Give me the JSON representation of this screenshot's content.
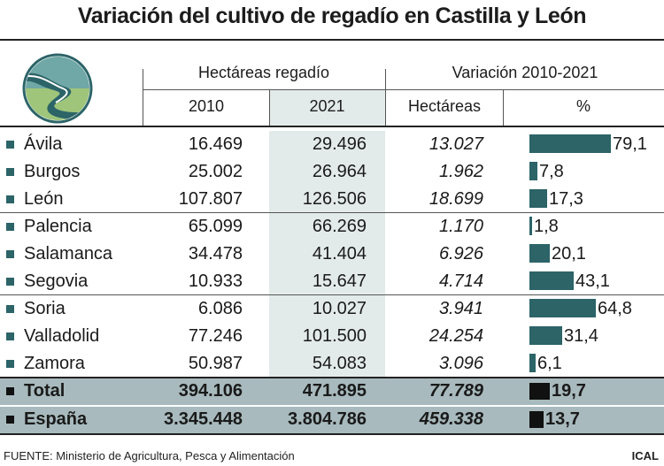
{
  "title": "Variación del cultivo de regadío en Castilla y León",
  "headers": {
    "group1": "Hectáreas regadío",
    "group2": "Variación 2010-2021",
    "col2010": "2010",
    "col2021": "2021",
    "colHa": "Hectáreas",
    "colPct": "%"
  },
  "chart_data": {
    "type": "table",
    "title": "Variación del cultivo de regadío en Castilla y León",
    "columns": [
      "2010",
      "2021",
      "Hectáreas",
      "%"
    ],
    "rows": [
      {
        "name": "Ávila",
        "y2010": "16.469",
        "y2021": "29.496",
        "ha": "13.027",
        "pct": "79,1",
        "pct_value": 79.1
      },
      {
        "name": "Burgos",
        "y2010": "25.002",
        "y2021": "26.964",
        "ha": "1.962",
        "pct": "7,8",
        "pct_value": 7.8
      },
      {
        "name": "León",
        "y2010": "107.807",
        "y2021": "126.506",
        "ha": "18.699",
        "pct": "17,3",
        "pct_value": 17.3
      },
      {
        "name": "Palencia",
        "y2010": "65.099",
        "y2021": "66.269",
        "ha": "1.170",
        "pct": "1,8",
        "pct_value": 1.8
      },
      {
        "name": "Salamanca",
        "y2010": "34.478",
        "y2021": "41.404",
        "ha": "6.926",
        "pct": "20,1",
        "pct_value": 20.1
      },
      {
        "name": "Segovia",
        "y2010": "10.933",
        "y2021": "15.647",
        "ha": "4.714",
        "pct": "43,1",
        "pct_value": 43.1
      },
      {
        "name": "Soria",
        "y2010": "6.086",
        "y2021": "10.027",
        "ha": "3.941",
        "pct": "64,8",
        "pct_value": 64.8
      },
      {
        "name": "Valladolid",
        "y2010": "77.246",
        "y2021": "101.500",
        "ha": "24.254",
        "pct": "31,4",
        "pct_value": 31.4
      },
      {
        "name": "Zamora",
        "y2010": "50.987",
        "y2021": "54.083",
        "ha": "3.096",
        "pct": "6,1",
        "pct_value": 6.1
      },
      {
        "name": "Total",
        "y2010": "394.106",
        "y2021": "471.895",
        "ha": "77.789",
        "pct": "19,7",
        "pct_value": 19.7,
        "summary": true
      },
      {
        "name": "España",
        "y2010": "3.345.448",
        "y2021": "3.804.786",
        "ha": "459.338",
        "pct": "13,7",
        "pct_value": 13.7,
        "summary": true
      }
    ],
    "bar_series": "%",
    "bar_color": "#2c6468",
    "summary_bar_color": "#111111",
    "summary_row_color": "#a8babd",
    "highlight_column_color": "#e3ebea"
  },
  "source": "FUENTE: Ministerio de Agricultura, Pesca y Alimentación",
  "credit": "ICAL"
}
